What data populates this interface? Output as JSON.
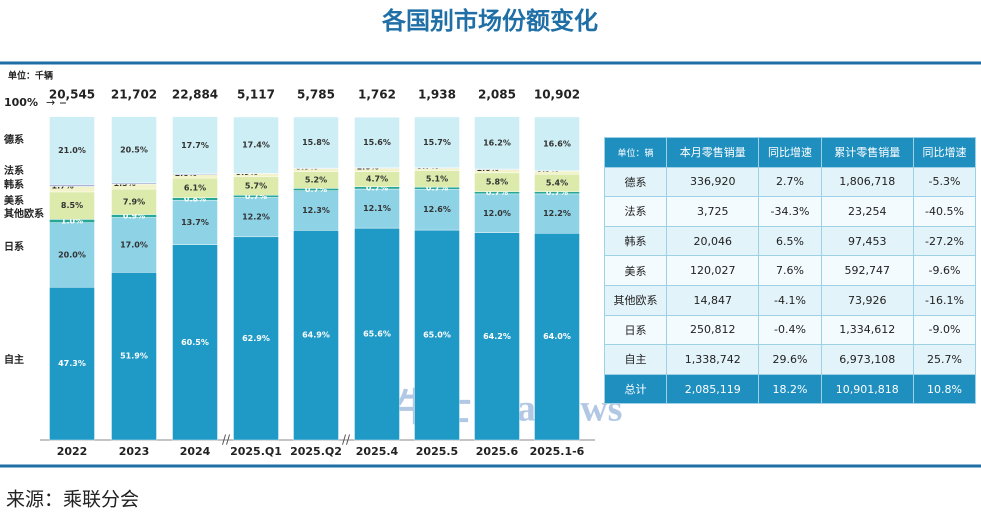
{
  "title": "各国别市场份额变化",
  "chart_data": {
    "type": "bar",
    "stacked": true,
    "unit": "单位：千辆",
    "categories": [
      "2022",
      "2023",
      "2024",
      "2025.Q1",
      "2025.Q2",
      "2025.4",
      "2025.5",
      "2025.6",
      "2025.1-6"
    ],
    "totals": {
      "values": [
        20545,
        21702,
        22884,
        5117,
        5785,
        1762,
        1938,
        2085,
        10902
      ],
      "value_labels": [
        "20,545",
        "21,702",
        "22,884",
        "5,117",
        "5,785",
        "1,762",
        "1,938",
        "2,085",
        "10,902"
      ]
    },
    "ylim": [
      0,
      100
    ],
    "yticks": [
      {
        "value": 100,
        "label": "100%"
      }
    ],
    "series": [
      {
        "name": "自主",
        "color": "#1f9ac6",
        "values": [
          47.3,
          51.9,
          60.5,
          62.9,
          64.9,
          65.6,
          65.0,
          64.2,
          64.0
        ],
        "value_labels": [
          "47.3%",
          "51.9%",
          "60.5%",
          "62.9%",
          "64.9%",
          "65.6%",
          "65.0%",
          "64.2%",
          "64.0%"
        ]
      },
      {
        "name": "日系",
        "color": "#8ed2e6",
        "values": [
          20.0,
          17.0,
          13.7,
          12.2,
          12.3,
          12.1,
          12.6,
          12.0,
          12.2
        ],
        "value_labels": [
          "20.0%",
          "17.0%",
          "13.7%",
          "12.2%",
          "12.3%",
          "12.1%",
          "12.6%",
          "12.0%",
          "12.2%"
        ]
      },
      {
        "name": "其他欧系",
        "color": "#26a79a",
        "values": [
          1.0,
          0.9,
          0.8,
          0.7,
          0.7,
          0.7,
          0.7,
          0.7,
          0.7
        ],
        "value_labels": [
          "1.0%",
          "0.9%",
          "0.8%",
          "0.7%",
          "0.7%",
          "0.7%",
          "0.7%",
          "0.7%",
          "0.7%"
        ]
      },
      {
        "name": "美系",
        "color": "#dcebab",
        "values": [
          8.5,
          7.9,
          6.1,
          5.7,
          5.2,
          4.7,
          5.1,
          5.8,
          5.4
        ],
        "value_labels": [
          "8.5%",
          "7.9%",
          "6.1%",
          "5.7%",
          "5.2%",
          "4.7%",
          "5.1%",
          "5.8%",
          "5.4%"
        ]
      },
      {
        "name": "韩系",
        "color": "#f2f3c8",
        "values": [
          1.7,
          1.5,
          1.0,
          0.9,
          0.9,
          1.0,
          0.7,
          1.0,
          0.9
        ],
        "value_labels": [
          "1.7%",
          "1.5%",
          "1.0%",
          "0.9%",
          "0.9%",
          "1.0%",
          "0.7%",
          "1.0%",
          "0.9%"
        ]
      },
      {
        "name": "法系",
        "color": "#a9b6dc",
        "values": [
          0.6,
          0.4,
          0.3,
          0.2,
          0.2,
          0.2,
          0.2,
          0.2,
          0.2
        ],
        "value_labels": [
          "0.6%",
          "0.4%",
          "0.3%",
          "0.2%",
          "0.2%",
          "0.2%",
          "0.2%",
          "0.2%",
          "0.2%"
        ]
      },
      {
        "name": "德系",
        "color": "#cdeef5",
        "values": [
          21.0,
          20.5,
          17.7,
          17.4,
          15.8,
          15.6,
          15.7,
          16.2,
          16.6
        ],
        "value_labels": [
          "21.0%",
          "20.5%",
          "17.7%",
          "17.4%",
          "15.8%",
          "15.6%",
          "15.7%",
          "16.2%",
          "16.6%"
        ]
      }
    ]
  },
  "table": {
    "header": [
      "单位：辆",
      "本月零售销量",
      "同比增速",
      "累计零售销量",
      "同比增速"
    ],
    "rows": [
      [
        "德系",
        "336,920",
        "2.7%",
        "1,806,718",
        "-5.3%"
      ],
      [
        "法系",
        "3,725",
        "-34.3%",
        "23,254",
        "-40.5%"
      ],
      [
        "韩系",
        "20,046",
        "6.5%",
        "97,453",
        "-27.2%"
      ],
      [
        "美系",
        "120,027",
        "7.6%",
        "592,747",
        "-9.6%"
      ],
      [
        "其他欧系",
        "14,847",
        "-4.1%",
        "73,926",
        "-16.1%"
      ],
      [
        "日系",
        "250,812",
        "-0.4%",
        "1,334,612",
        "-9.0%"
      ],
      [
        "自主",
        "1,338,742",
        "29.6%",
        "6,973,108",
        "25.7%"
      ],
      [
        "总计",
        "2,085,119",
        "18.2%",
        "10,901,818",
        "10.8%"
      ]
    ]
  },
  "watermark": "鞭牛士 BiaNews",
  "source": "来源：乘联分会"
}
